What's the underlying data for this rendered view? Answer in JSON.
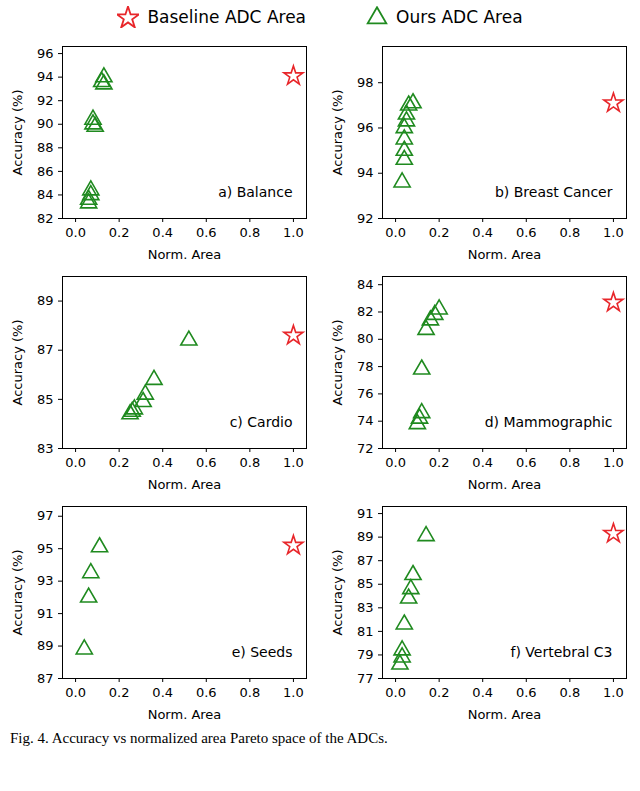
{
  "caption": "Fig. 4.  Accuracy vs normalized area Pareto space of the ADCs.",
  "chart_data": [
    {
      "type": "scatter",
      "annotation": "a) Balance",
      "xlabel": "Norm. Area",
      "ylabel": "Accuracy (%)",
      "legend": "top",
      "xlim": [
        -0.06,
        1.06
      ],
      "xticks": [
        {
          "value": 0,
          "label": "0.0"
        },
        0.2,
        0.4,
        0.6,
        0.8,
        {
          "value": 1,
          "label": "1.0"
        }
      ],
      "ylim": [
        82,
        96.6
      ],
      "yticks": [
        82,
        84,
        86,
        88,
        90,
        92,
        94,
        96
      ],
      "series": [
        {
          "name": "Baseline ADC Area",
          "color": "#e8262a",
          "marker": "star",
          "x": [
            1.0
          ],
          "values": [
            94.1
          ]
        },
        {
          "name": "Ours ADC Area",
          "color": "#1f8a1f",
          "marker": "triangle",
          "x": [
            0.13,
            0.12,
            0.13,
            0.08,
            0.08,
            0.09,
            0.07,
            0.07,
            0.06,
            0.06
          ],
          "values": [
            94.0,
            93.6,
            93.4,
            90.4,
            90.0,
            89.8,
            84.4,
            84.0,
            83.6,
            83.3
          ]
        }
      ]
    },
    {
      "type": "scatter",
      "annotation": "b) Breast Cancer",
      "xlabel": "Norm. Area",
      "ylabel": "Accuracy (%)",
      "xlim": [
        -0.06,
        1.06
      ],
      "xticks": [
        {
          "value": 0,
          "label": "0.0"
        },
        0.2,
        0.4,
        0.6,
        0.8,
        {
          "value": 1,
          "label": "1.0"
        }
      ],
      "ylim": [
        92,
        99.6
      ],
      "yticks": [
        92,
        94,
        96,
        98
      ],
      "series": [
        {
          "name": "Baseline ADC Area",
          "color": "#e8262a",
          "marker": "star",
          "x": [
            1.0
          ],
          "values": [
            97.1
          ]
        },
        {
          "name": "Ours ADC Area",
          "color": "#1f8a1f",
          "marker": "triangle",
          "x": [
            0.08,
            0.06,
            0.05,
            0.05,
            0.04,
            0.04,
            0.04,
            0.04,
            0.03
          ],
          "values": [
            97.1,
            97.0,
            96.6,
            96.3,
            96.0,
            95.5,
            95.0,
            94.6,
            93.6
          ]
        }
      ]
    },
    {
      "type": "scatter",
      "annotation": "c) Cardio",
      "xlabel": "Norm. Area",
      "ylabel": "Accuracy (%)",
      "xlim": [
        -0.06,
        1.06
      ],
      "xticks": [
        {
          "value": 0,
          "label": "0.0"
        },
        0.2,
        0.4,
        0.6,
        0.8,
        {
          "value": 1,
          "label": "1.0"
        }
      ],
      "ylim": [
        83,
        90
      ],
      "yticks": [
        83,
        85,
        87,
        89
      ],
      "series": [
        {
          "name": "Baseline ADC Area",
          "color": "#e8262a",
          "marker": "star",
          "x": [
            1.0
          ],
          "values": [
            87.6
          ]
        },
        {
          "name": "Ours ADC Area",
          "color": "#1f8a1f",
          "marker": "triangle",
          "x": [
            0.52,
            0.36,
            0.32,
            0.31,
            0.27,
            0.26,
            0.25
          ],
          "values": [
            87.4,
            85.8,
            85.2,
            84.9,
            84.6,
            84.5,
            84.4
          ]
        }
      ]
    },
    {
      "type": "scatter",
      "annotation": "d) Mammographic",
      "xlabel": "Norm. Area",
      "ylabel": "Accuracy (%)",
      "xlim": [
        -0.06,
        1.06
      ],
      "xticks": [
        {
          "value": 0,
          "label": "0.0"
        },
        0.2,
        0.4,
        0.6,
        0.8,
        {
          "value": 1,
          "label": "1.0"
        }
      ],
      "ylim": [
        72,
        84.6
      ],
      "yticks": [
        72,
        74,
        76,
        78,
        80,
        82,
        84
      ],
      "series": [
        {
          "name": "Baseline ADC Area",
          "color": "#e8262a",
          "marker": "star",
          "x": [
            1.0
          ],
          "values": [
            82.7
          ]
        },
        {
          "name": "Ours ADC Area",
          "color": "#1f8a1f",
          "marker": "triangle",
          "x": [
            0.2,
            0.18,
            0.16,
            0.14,
            0.12,
            0.12,
            0.11,
            0.1
          ],
          "values": [
            82.2,
            81.8,
            81.4,
            80.7,
            77.8,
            74.6,
            74.2,
            73.8
          ]
        }
      ]
    },
    {
      "type": "scatter",
      "annotation": "e) Seeds",
      "xlabel": "Norm. Area",
      "ylabel": "Accuracy (%)",
      "xlim": [
        -0.06,
        1.06
      ],
      "xticks": [
        {
          "value": 0,
          "label": "0.0"
        },
        0.2,
        0.4,
        0.6,
        0.8,
        {
          "value": 1,
          "label": "1.0"
        }
      ],
      "ylim": [
        87,
        97.6
      ],
      "yticks": [
        87,
        89,
        91,
        93,
        95,
        97
      ],
      "series": [
        {
          "name": "Baseline ADC Area",
          "color": "#e8262a",
          "marker": "star",
          "x": [
            1.0
          ],
          "values": [
            95.2
          ]
        },
        {
          "name": "Ours ADC Area",
          "color": "#1f8a1f",
          "marker": "triangle",
          "x": [
            0.11,
            0.07,
            0.06,
            0.04
          ],
          "values": [
            95.1,
            93.5,
            92.0,
            88.8
          ]
        }
      ]
    },
    {
      "type": "scatter",
      "annotation": "f) Vertebral C3",
      "xlabel": "Norm. Area",
      "ylabel": "Accuracy (%)",
      "xlim": [
        -0.06,
        1.06
      ],
      "xticks": [
        {
          "value": 0,
          "label": "0.0"
        },
        0.2,
        0.4,
        0.6,
        0.8,
        {
          "value": 1,
          "label": "1.0"
        }
      ],
      "ylim": [
        77,
        91.6
      ],
      "yticks": [
        77,
        79,
        81,
        83,
        85,
        87,
        89,
        91
      ],
      "series": [
        {
          "name": "Baseline ADC Area",
          "color": "#e8262a",
          "marker": "star",
          "x": [
            1.0
          ],
          "values": [
            89.3
          ]
        },
        {
          "name": "Ours ADC Area",
          "color": "#1f8a1f",
          "marker": "triangle",
          "x": [
            0.14,
            0.08,
            0.07,
            0.06,
            0.04,
            0.03,
            0.03,
            0.02
          ],
          "values": [
            89.1,
            85.8,
            84.6,
            83.8,
            81.6,
            79.4,
            78.8,
            78.2
          ]
        }
      ]
    }
  ]
}
